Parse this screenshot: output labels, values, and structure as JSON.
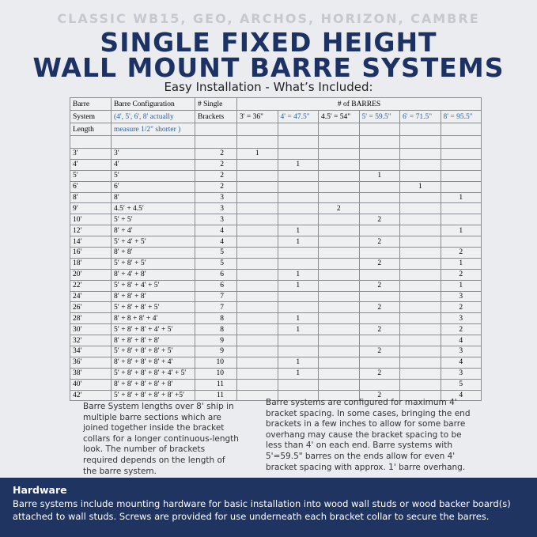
{
  "header": {
    "topline": "CLASSIC WB15, GEO, ARCHOS, HORIZON, CAMBRE",
    "title_line1": "SINGLE FIXED HEIGHT",
    "title_line2": "WALL MOUNT BARRE SYSTEMS",
    "subtitle": "Easy Installation - What’s Included:"
  },
  "table": {
    "header_rows": [
      [
        "Barre",
        "Barre Configuration",
        "# Single",
        "# of BARRES"
      ],
      [
        "System",
        "(4', 5', 6', 8' actually",
        "Brackets",
        "3' = 36\"",
        "4' = 47.5\"",
        "4.5' = 54\"",
        "5' = 59.5\"",
        "6' = 71.5\"",
        "8' = 95.5\""
      ],
      [
        "Length",
        "measure 1/2\" shorter )",
        null,
        null,
        null,
        null,
        null,
        null,
        null
      ]
    ],
    "rows": [
      [
        "3′",
        "3′",
        2,
        1,
        null,
        null,
        null,
        null,
        null
      ],
      [
        "4′",
        "4′",
        2,
        null,
        1,
        null,
        null,
        null,
        null
      ],
      [
        "5′",
        "5′",
        2,
        null,
        null,
        null,
        1,
        null,
        null
      ],
      [
        "6′",
        "6′",
        2,
        null,
        null,
        null,
        null,
        1,
        null
      ],
      [
        "8′",
        "8′",
        3,
        null,
        null,
        null,
        null,
        null,
        1
      ],
      [
        "9′",
        "4.5′ + 4.5′",
        3,
        null,
        null,
        2,
        null,
        null,
        null
      ],
      [
        "10′",
        "5′ + 5′",
        3,
        null,
        null,
        null,
        2,
        null,
        null
      ],
      [
        "12′",
        "8′ + 4′",
        4,
        null,
        1,
        null,
        null,
        null,
        1
      ],
      [
        "14′",
        "5′ + 4′ + 5′",
        4,
        null,
        1,
        null,
        2,
        null,
        null
      ],
      [
        "16′",
        "8′ + 8′",
        5,
        null,
        null,
        null,
        null,
        null,
        2
      ],
      [
        "18′",
        "5′ + 8′ + 5′",
        5,
        null,
        null,
        null,
        2,
        null,
        1
      ],
      [
        "20′",
        "8′ + 4′ + 8′",
        6,
        null,
        1,
        null,
        null,
        null,
        2
      ],
      [
        "22′",
        "5′ + 8′ + 4′ + 5′",
        6,
        null,
        1,
        null,
        2,
        null,
        1
      ],
      [
        "24′",
        "8′ + 8′ + 8′",
        7,
        null,
        null,
        null,
        null,
        null,
        3
      ],
      [
        "26′",
        "5′ + 8′ + 8′ + 5′",
        7,
        null,
        null,
        null,
        2,
        null,
        2
      ],
      [
        "28′",
        "8′ + 8 + 8′ + 4′",
        8,
        null,
        1,
        null,
        null,
        null,
        3
      ],
      [
        "30′",
        "5′ + 8′ + 8′ + 4′ + 5′",
        8,
        null,
        1,
        null,
        2,
        null,
        2
      ],
      [
        "32′",
        "8′ + 8′ + 8′ + 8′",
        9,
        null,
        null,
        null,
        null,
        null,
        4
      ],
      [
        "34′",
        "5′ + 8′ + 8′ + 8′ + 5′",
        9,
        null,
        null,
        null,
        2,
        null,
        3
      ],
      [
        "36′",
        "8′ + 8′ + 8′ + 8′ + 4′",
        10,
        null,
        1,
        null,
        null,
        null,
        4
      ],
      [
        "38′",
        "5′ + 8′ + 8′ + 8′ + 4′ + 5′",
        10,
        null,
        1,
        null,
        2,
        null,
        3
      ],
      [
        "40′",
        "8′ + 8′ + 8′ + 8′ + 8′",
        11,
        null,
        null,
        null,
        null,
        null,
        5
      ],
      [
        "42′",
        "5′ + 8′ + 8′ + 8′ + 8′ +5′",
        11,
        null,
        null,
        null,
        2,
        null,
        4
      ]
    ]
  },
  "notes": {
    "left": "Barre System lengths over 8' ship in multiple barre sections which are joined together inside the bracket collars for a longer continuous-length look. The number of brackets required depends on the length of the barre system.",
    "right": "Barre systems are configured for maximum 4' bracket spacing.  In some cases, bringing the end brackets in a few inches to allow for some barre overhang may cause the bracket spacing to be less than 4' on each end.  Barre systems with 5'=59.5\" barres on the ends allow for even 4' bracket spacing with approx. 1' barre overhang."
  },
  "footer": {
    "heading": "Hardware",
    "text": "Barre systems include mounting hardware for basic installation into wood wall studs or wood backer board(s) attached to wall studs. Screws are provided for use underneath each bracket collar to secure the barres."
  }
}
